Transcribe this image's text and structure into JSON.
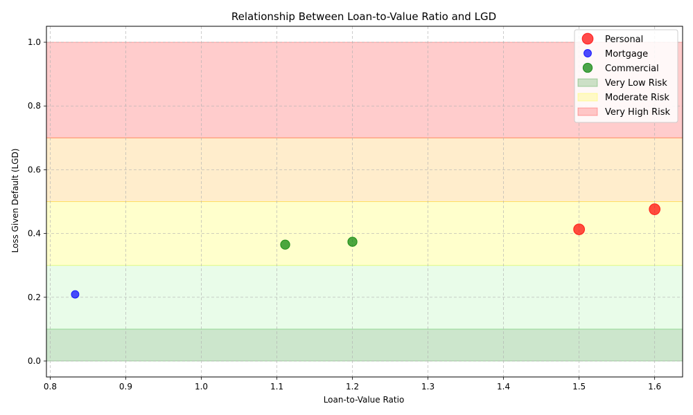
{
  "chart_data": {
    "type": "scatter",
    "title": "Relationship Between Loan-to-Value Ratio and LGD",
    "xlabel": "Loan-to-Value Ratio",
    "ylabel": "Loss Given Default (LGD)",
    "xlim": [
      0.795,
      1.637
    ],
    "ylim": [
      -0.05,
      1.05
    ],
    "xticks": [
      "0.8",
      "0.9",
      "1.0",
      "1.1",
      "1.2",
      "1.3",
      "1.4",
      "1.5",
      "1.6"
    ],
    "yticks": [
      "0.0",
      "0.2",
      "0.4",
      "0.6",
      "0.8",
      "1.0"
    ],
    "grid": true,
    "legend_position": "top-right",
    "bands": [
      {
        "y0": 0.0,
        "y1": 0.1,
        "color": "#008000",
        "opacity": 0.2,
        "label": "Very Low Risk"
      },
      {
        "y0": 0.1,
        "y1": 0.3,
        "color": "#90ee90",
        "opacity": 0.2
      },
      {
        "y0": 0.3,
        "y1": 0.5,
        "color": "#ffff00",
        "opacity": 0.2,
        "label": "Moderate Risk"
      },
      {
        "y0": 0.5,
        "y1": 0.7,
        "color": "#ffa500",
        "opacity": 0.2
      },
      {
        "y0": 0.7,
        "y1": 1.0,
        "color": "#ff0000",
        "opacity": 0.2,
        "label": "Very High Risk"
      }
    ],
    "series": [
      {
        "name": "Personal",
        "color": "#ff0000",
        "marker_size": 13,
        "points": [
          {
            "x": 1.5,
            "y": 0.413
          },
          {
            "x": 1.6,
            "y": 0.476
          }
        ]
      },
      {
        "name": "Mortgage",
        "color": "#0000ff",
        "marker_size": 9,
        "points": [
          {
            "x": 0.833,
            "y": 0.209
          }
        ]
      },
      {
        "name": "Commercial",
        "color": "#008000",
        "marker_size": 11,
        "points": [
          {
            "x": 1.111,
            "y": 0.365
          },
          {
            "x": 1.2,
            "y": 0.374
          }
        ]
      }
    ]
  }
}
